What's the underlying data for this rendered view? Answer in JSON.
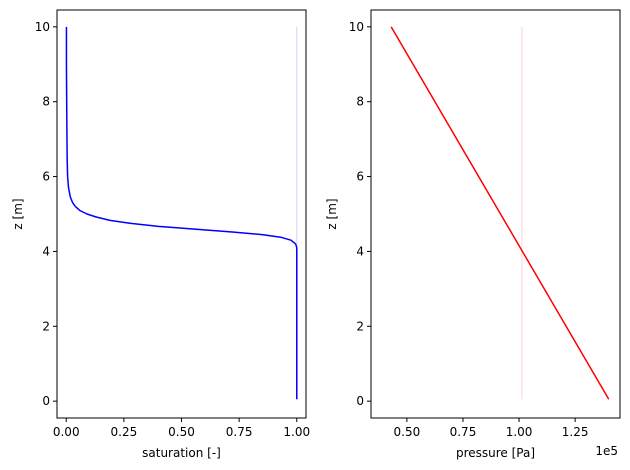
{
  "figure": {
    "background": "#ffffff"
  },
  "chart_data": [
    {
      "type": "line",
      "xlabel": "saturation [-]",
      "ylabel": "z [m]",
      "xlim": [
        -0.04,
        1.04
      ],
      "ylim": [
        -0.45,
        10.45
      ],
      "xticks": [
        0.0,
        0.25,
        0.5,
        0.75,
        1.0
      ],
      "xtick_labels": [
        "0.00",
        "0.25",
        "0.50",
        "0.75",
        "1.00"
      ],
      "yticks": [
        0,
        2,
        4,
        6,
        8,
        10
      ],
      "ytick_labels": [
        "0",
        "2",
        "4",
        "6",
        "8",
        "10"
      ],
      "grid": false,
      "series": [
        {
          "color": "#0000ff",
          "opacity": 1,
          "x": [
            1.0,
            1.0,
            1.0,
            1.0,
            1.0,
            1.0,
            0.995,
            0.975,
            0.93,
            0.85,
            0.72,
            0.55,
            0.4,
            0.28,
            0.19,
            0.13,
            0.09,
            0.06,
            0.04,
            0.028,
            0.018,
            0.01,
            0.006,
            0.004,
            0.003,
            0.002,
            0.001,
            0.001
          ],
          "y": [
            0.05,
            1.0,
            2.0,
            3.0,
            3.8,
            4.1,
            4.2,
            4.3,
            4.38,
            4.45,
            4.52,
            4.6,
            4.67,
            4.75,
            4.83,
            4.92,
            5.0,
            5.09,
            5.2,
            5.3,
            5.45,
            5.7,
            6.0,
            6.5,
            7.2,
            8.0,
            9.0,
            10.0
          ]
        },
        {
          "color": "#0000ff",
          "opacity": 0.12,
          "x": [
            1.0,
            1.0
          ],
          "y": [
            0.05,
            10.0
          ]
        }
      ]
    },
    {
      "type": "line",
      "xlabel": "pressure [Pa]",
      "ylabel": "z [m]",
      "x_offset_text": "1e5",
      "xlim": [
        0.34,
        1.45
      ],
      "ylim": [
        -0.45,
        10.45
      ],
      "xticks": [
        0.5,
        0.75,
        1.0,
        1.25
      ],
      "xtick_labels": [
        "0.50",
        "0.75",
        "1.00",
        "1.25"
      ],
      "yticks": [
        0,
        2,
        4,
        6,
        8,
        10
      ],
      "ytick_labels": [
        "0",
        "2",
        "4",
        "6",
        "8",
        "10"
      ],
      "grid": false,
      "series": [
        {
          "color": "#ff0000",
          "opacity": 1,
          "x": [
            0.43,
            1.4
          ],
          "y": [
            10.0,
            0.05
          ]
        },
        {
          "color": "#ff0000",
          "opacity": 0.12,
          "x": [
            1.013,
            1.013
          ],
          "y": [
            0.05,
            10.0
          ]
        }
      ]
    }
  ]
}
